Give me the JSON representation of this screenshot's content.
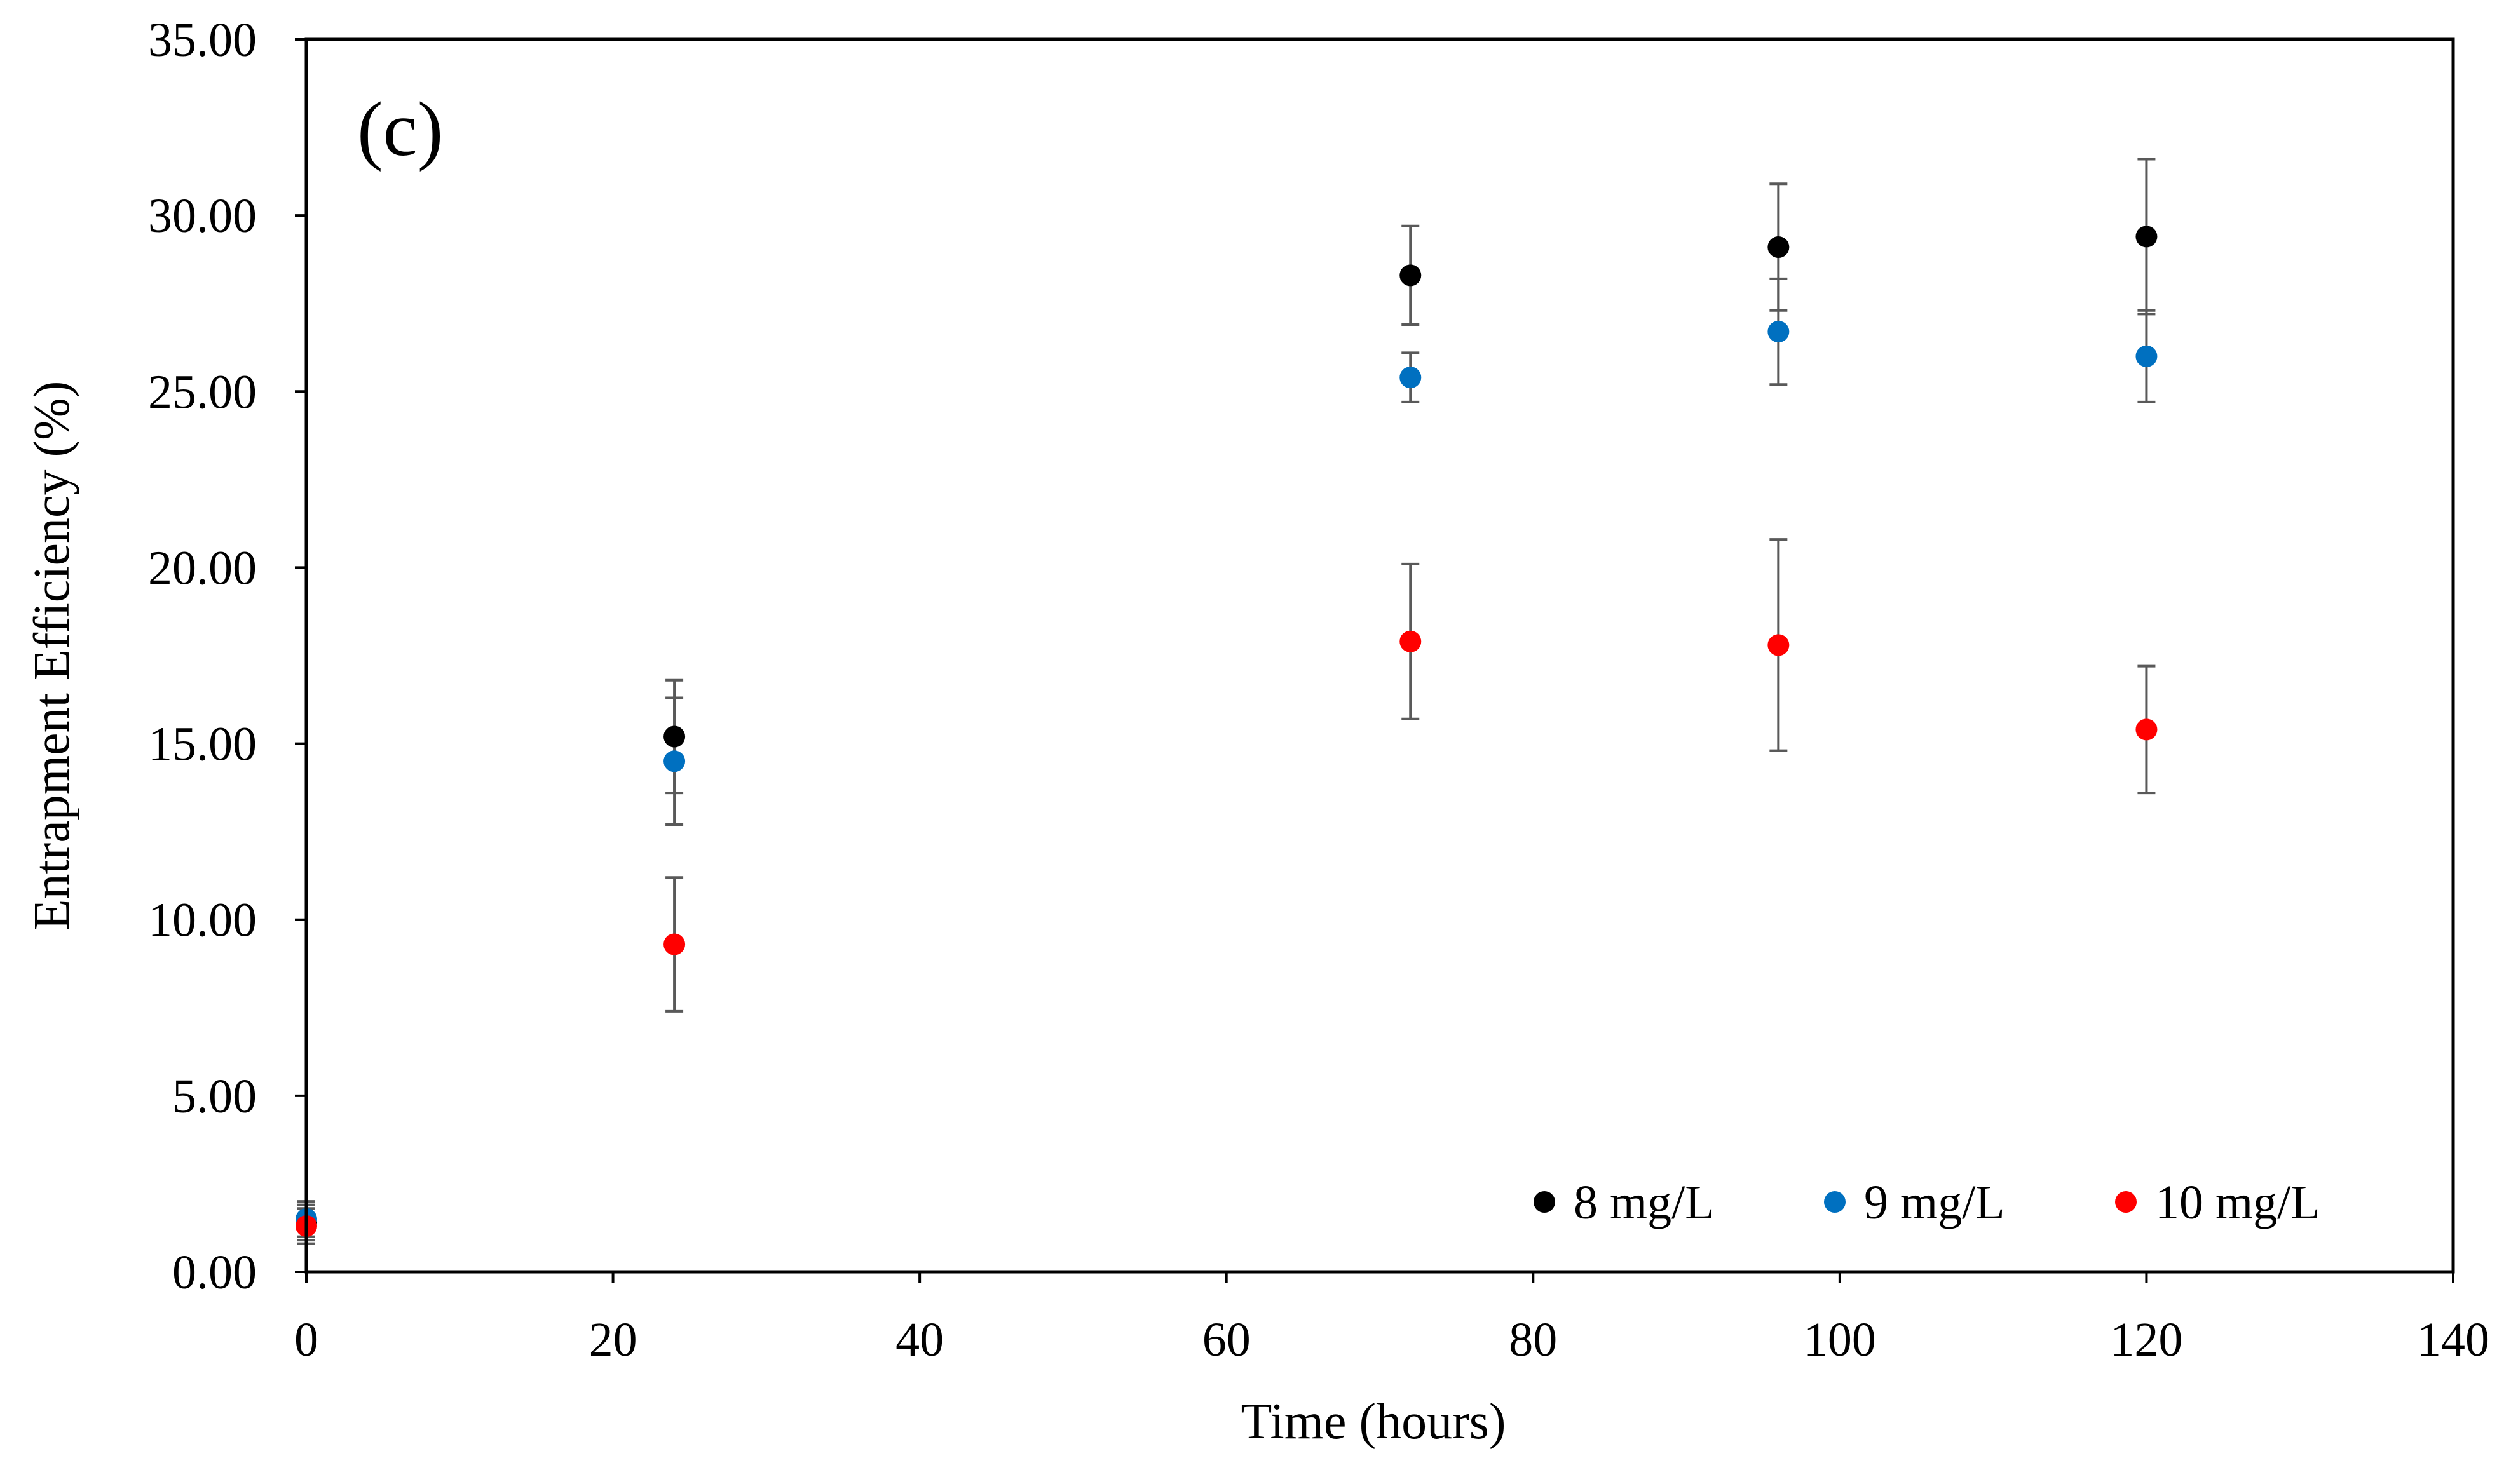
{
  "chart_data": {
    "type": "scatter",
    "panel_label": "(c)",
    "xlabel": "Time (hours)",
    "ylabel": "Entrapment Efficiency (%)",
    "xlim": [
      0,
      140
    ],
    "ylim": [
      0,
      35
    ],
    "x_ticks": [
      0,
      20,
      40,
      60,
      80,
      100,
      120,
      140
    ],
    "x_tick_labels": [
      "0",
      "20",
      "40",
      "60",
      "80",
      "100",
      "120",
      "140"
    ],
    "y_ticks": [
      0,
      5,
      10,
      15,
      20,
      25,
      30,
      35
    ],
    "y_tick_labels": [
      "0.00",
      "5.00",
      "10.00",
      "15.00",
      "20.00",
      "25.00",
      "30.00",
      "35.00"
    ],
    "grid": false,
    "legend_position": "bottom-right",
    "series": [
      {
        "name": "8 mg/L",
        "color": "#000000",
        "x": [
          0,
          24,
          72,
          96,
          120
        ],
        "y": [
          1.4,
          15.2,
          28.3,
          29.1,
          29.4
        ],
        "error": [
          0.5,
          1.6,
          1.4,
          1.8,
          2.2
        ]
      },
      {
        "name": "9 mg/L",
        "color": "#0070C0",
        "x": [
          0,
          24,
          72,
          96,
          120
        ],
        "y": [
          1.5,
          14.5,
          25.4,
          26.7,
          26.0
        ],
        "error": [
          0.5,
          1.8,
          0.7,
          1.5,
          1.3
        ]
      },
      {
        "name": "10 mg/L",
        "color": "#FF0000",
        "x": [
          0,
          24,
          72,
          96,
          120
        ],
        "y": [
          1.3,
          9.3,
          17.9,
          17.8,
          15.4
        ],
        "error": [
          0.5,
          1.9,
          2.2,
          3.0,
          1.8
        ]
      }
    ]
  }
}
